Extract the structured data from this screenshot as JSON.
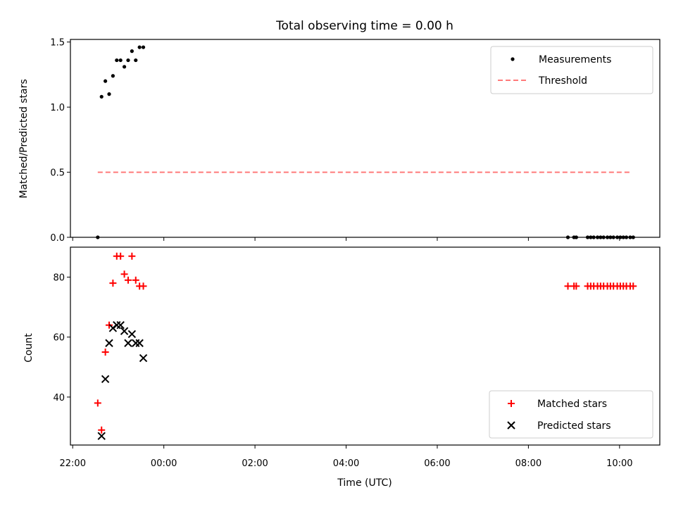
{
  "chart_data": [
    {
      "type": "scatter",
      "title": "Total observing time = 0.00 h",
      "xlabel": "",
      "ylabel": "Matched/Predicted stars",
      "ylim": [
        0,
        1.52
      ],
      "y_ticks": [
        0.0,
        0.5,
        1.0,
        1.5
      ],
      "legend": "top-right",
      "series": [
        {
          "name": "Measurements",
          "marker": "dot",
          "color": "#000000",
          "x": [
            "22:33",
            "22:38",
            "22:43",
            "22:48",
            "22:53",
            "22:58",
            "23:03",
            "23:08",
            "23:13",
            "23:18",
            "23:23",
            "23:28",
            "23:33",
            "08:52",
            "09:00",
            "09:03",
            "09:18",
            "09:22",
            "09:26",
            "09:31",
            "09:35",
            "09:39",
            "09:44",
            "09:48",
            "09:52",
            "09:57",
            "10:01",
            "10:05",
            "10:09",
            "10:14",
            "10:18"
          ],
          "y": [
            0.0,
            1.08,
            1.2,
            1.1,
            1.24,
            1.36,
            1.36,
            1.31,
            1.36,
            1.43,
            1.36,
            1.46,
            1.46,
            0,
            0,
            0,
            0,
            0,
            0,
            0,
            0,
            0,
            0,
            0,
            0,
            0,
            0,
            0,
            0,
            0,
            0
          ]
        },
        {
          "name": "Threshold",
          "style": "dashed",
          "color": "#ff7a7a",
          "x": [
            "22:33",
            "10:14"
          ],
          "y": [
            0.5,
            0.5
          ]
        }
      ]
    },
    {
      "type": "scatter",
      "title": "",
      "xlabel": "Time (UTC)",
      "ylabel": "Count",
      "ylim": [
        24,
        90
      ],
      "y_ticks": [
        40,
        60,
        80
      ],
      "x_ticks": [
        "22:00",
        "00:00",
        "02:00",
        "04:00",
        "06:00",
        "08:00",
        "10:00"
      ],
      "legend": "bottom-right",
      "series": [
        {
          "name": "Matched stars",
          "marker": "plus",
          "color": "#ff0000",
          "x": [
            "22:33",
            "22:38",
            "22:43",
            "22:48",
            "22:53",
            "22:58",
            "23:03",
            "23:08",
            "23:13",
            "23:18",
            "23:23",
            "23:28",
            "23:33",
            "08:52",
            "09:00",
            "09:03",
            "09:18",
            "09:22",
            "09:26",
            "09:31",
            "09:35",
            "09:39",
            "09:44",
            "09:48",
            "09:52",
            "09:57",
            "10:01",
            "10:05",
            "10:09",
            "10:14",
            "10:18"
          ],
          "y": [
            38,
            29,
            55,
            64,
            78,
            87,
            87,
            81,
            79,
            87,
            79,
            77,
            77,
            77,
            77,
            77,
            77,
            77,
            77,
            77,
            77,
            77,
            77,
            77,
            77,
            77,
            77,
            77,
            77,
            77,
            77
          ]
        },
        {
          "name": "Predicted stars",
          "marker": "x",
          "color": "#000000",
          "x": [
            "22:38",
            "22:43",
            "22:48",
            "22:53",
            "22:58",
            "23:03",
            "23:08",
            "23:13",
            "23:18",
            "23:23",
            "23:28",
            "23:33"
          ],
          "y": [
            27,
            46,
            58,
            63,
            64,
            64,
            62,
            58,
            61,
            58,
            58,
            53
          ]
        }
      ]
    }
  ]
}
